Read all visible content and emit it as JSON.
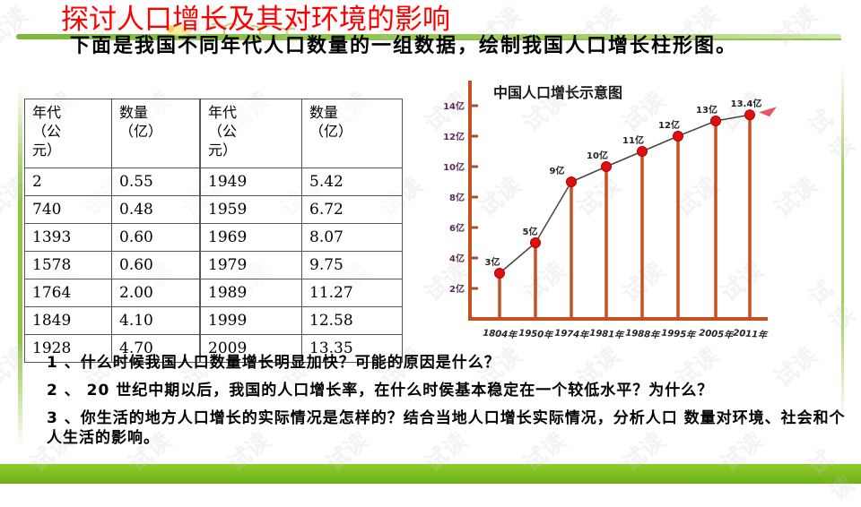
{
  "slide": {
    "title": "探讨人口增长及其对环境的影响",
    "intro": "下面是我国不同年代人口数量的一组数据，绘制我国人口增长柱形图。",
    "watermark": "试读",
    "colors": {
      "title": "#ff0000",
      "accent_green": "#8dc63f",
      "chart_bar": "#c8501e",
      "chart_point": "#e01010",
      "chart_axis_label": "#5a2a55"
    }
  },
  "table": {
    "headers": [
      "年代（公元）",
      "数量（亿）",
      "年代（公元）",
      "数量（亿）"
    ],
    "header_lines": [
      [
        "年代",
        "（公",
        "元）"
      ],
      [
        "数量",
        "（亿）",
        ""
      ],
      [
        "年代",
        "（公",
        "元）"
      ],
      [
        "数量",
        "（亿）",
        ""
      ]
    ],
    "rows": [
      [
        "2",
        "0.55",
        "1949",
        "5.42"
      ],
      [
        "740",
        "0.48",
        "1959",
        "6.72"
      ],
      [
        "1393",
        "0.60",
        "1969",
        "8.07"
      ],
      [
        "1578",
        "0.60",
        "1979",
        "9.75"
      ],
      [
        "1764",
        "2.00",
        "1989",
        "11.27"
      ],
      [
        "1849",
        "4.10",
        "1999",
        "12.58"
      ],
      [
        "1928",
        "4.70",
        "2009",
        "13.35"
      ]
    ]
  },
  "chart_data": {
    "type": "line",
    "title": "中国人口增长示意图",
    "categories": [
      "1804年",
      "1950年",
      "1974年",
      "1981年",
      "1988年",
      "1995年",
      "2005年",
      "2011年"
    ],
    "values": [
      3,
      5,
      9,
      10,
      11,
      12,
      13,
      13.4
    ],
    "point_labels": [
      "3亿",
      "5亿",
      "9亿",
      "10亿",
      "11亿",
      "12亿",
      "13亿",
      "13.4亿"
    ],
    "yticks": [
      "2亿",
      "4亿",
      "6亿",
      "8亿",
      "10亿",
      "12亿",
      "14亿"
    ],
    "ylim": [
      0,
      14
    ],
    "xlabel": "",
    "ylabel": "",
    "grid": false,
    "legend": null
  },
  "questions": [
    "1 、什么时候我国人口数量增长明显加快？可能的原因是什么？",
    "2 、 20 世纪中期以后，我国的人口增长率，在什么时侯基本稳定在一个较低水平？为什么？",
    "3 、你生活的地方人口增长的实际情况是怎样的？结合当地人口增长实际情况，分析人口  数量对环境、社会和个人生活的影响。"
  ]
}
